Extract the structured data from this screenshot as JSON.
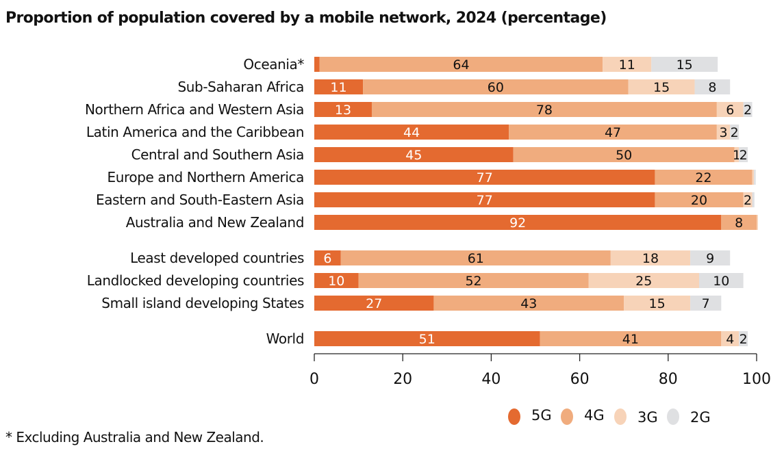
{
  "chart_data": {
    "type": "bar",
    "orientation": "horizontal",
    "stacked": true,
    "title": "Proportion of population covered by a mobile network, 2024 (percentage)",
    "footnote": "* Excluding Australia and New Zealand.",
    "xlim": [
      0,
      100
    ],
    "xticks": [
      "0",
      "20",
      "40",
      "60",
      "80",
      "100"
    ],
    "grid": false,
    "legend_position": "bottom-right",
    "groups": [
      [
        "Oceania*",
        "Sub-Saharan Africa",
        "Northern Africa and Western Asia",
        "Latin America and the Caribbean",
        "Central and Southern Asia",
        "Europe and Northern America",
        "Eastern and South-Eastern Asia",
        "Australia and New Zealand"
      ],
      [
        "Least developed countries",
        "Landlocked developing countries",
        "Small island developing States"
      ],
      [
        "World"
      ]
    ],
    "categories": [
      "Oceania*",
      "Sub-Saharan Africa",
      "Northern Africa and Western Asia",
      "Latin America and the Caribbean",
      "Central and Southern Asia",
      "Europe and Northern America",
      "Eastern and South-Eastern Asia",
      "Australia and New Zealand",
      "Least developed countries",
      "Landlocked developing countries",
      "Small island developing States",
      "World"
    ],
    "series": [
      {
        "name": "5G",
        "color": "#E46A30",
        "label_color": "#ffffff",
        "values": [
          1.2,
          11,
          13,
          44,
          45,
          77,
          77,
          92,
          6,
          10,
          27,
          51
        ],
        "labels": [
          "",
          "11",
          "13",
          "44",
          "45",
          "77",
          "77",
          "92",
          "6",
          "10",
          "27",
          "51"
        ]
      },
      {
        "name": "4G",
        "color": "#F0AC7E",
        "label_color": "#111111",
        "values": [
          64,
          60,
          78,
          47,
          50,
          22,
          20,
          8,
          61,
          52,
          43,
          41
        ],
        "labels": [
          "64",
          "60",
          "78",
          "47",
          "50",
          "22",
          "20",
          "8",
          "61",
          "52",
          "43",
          "41"
        ]
      },
      {
        "name": "3G",
        "color": "#F7D3B8",
        "label_color": "#111111",
        "values": [
          11,
          15,
          6,
          3,
          1,
          0.4,
          2,
          0.3,
          18,
          25,
          15,
          4
        ],
        "labels": [
          "11",
          "15",
          "6",
          "3",
          "1",
          "",
          "2",
          "",
          "18",
          "25",
          "15",
          "4"
        ]
      },
      {
        "name": "2G",
        "color": "#DFE0E2",
        "label_color": "#111111",
        "values": [
          15,
          8,
          2,
          2,
          2,
          0.4,
          0.5,
          0,
          9,
          10,
          7,
          2
        ],
        "labels": [
          "15",
          "8",
          "2",
          "2",
          "2",
          "",
          "",
          "",
          "9",
          "10",
          "7",
          "2"
        ]
      }
    ]
  }
}
